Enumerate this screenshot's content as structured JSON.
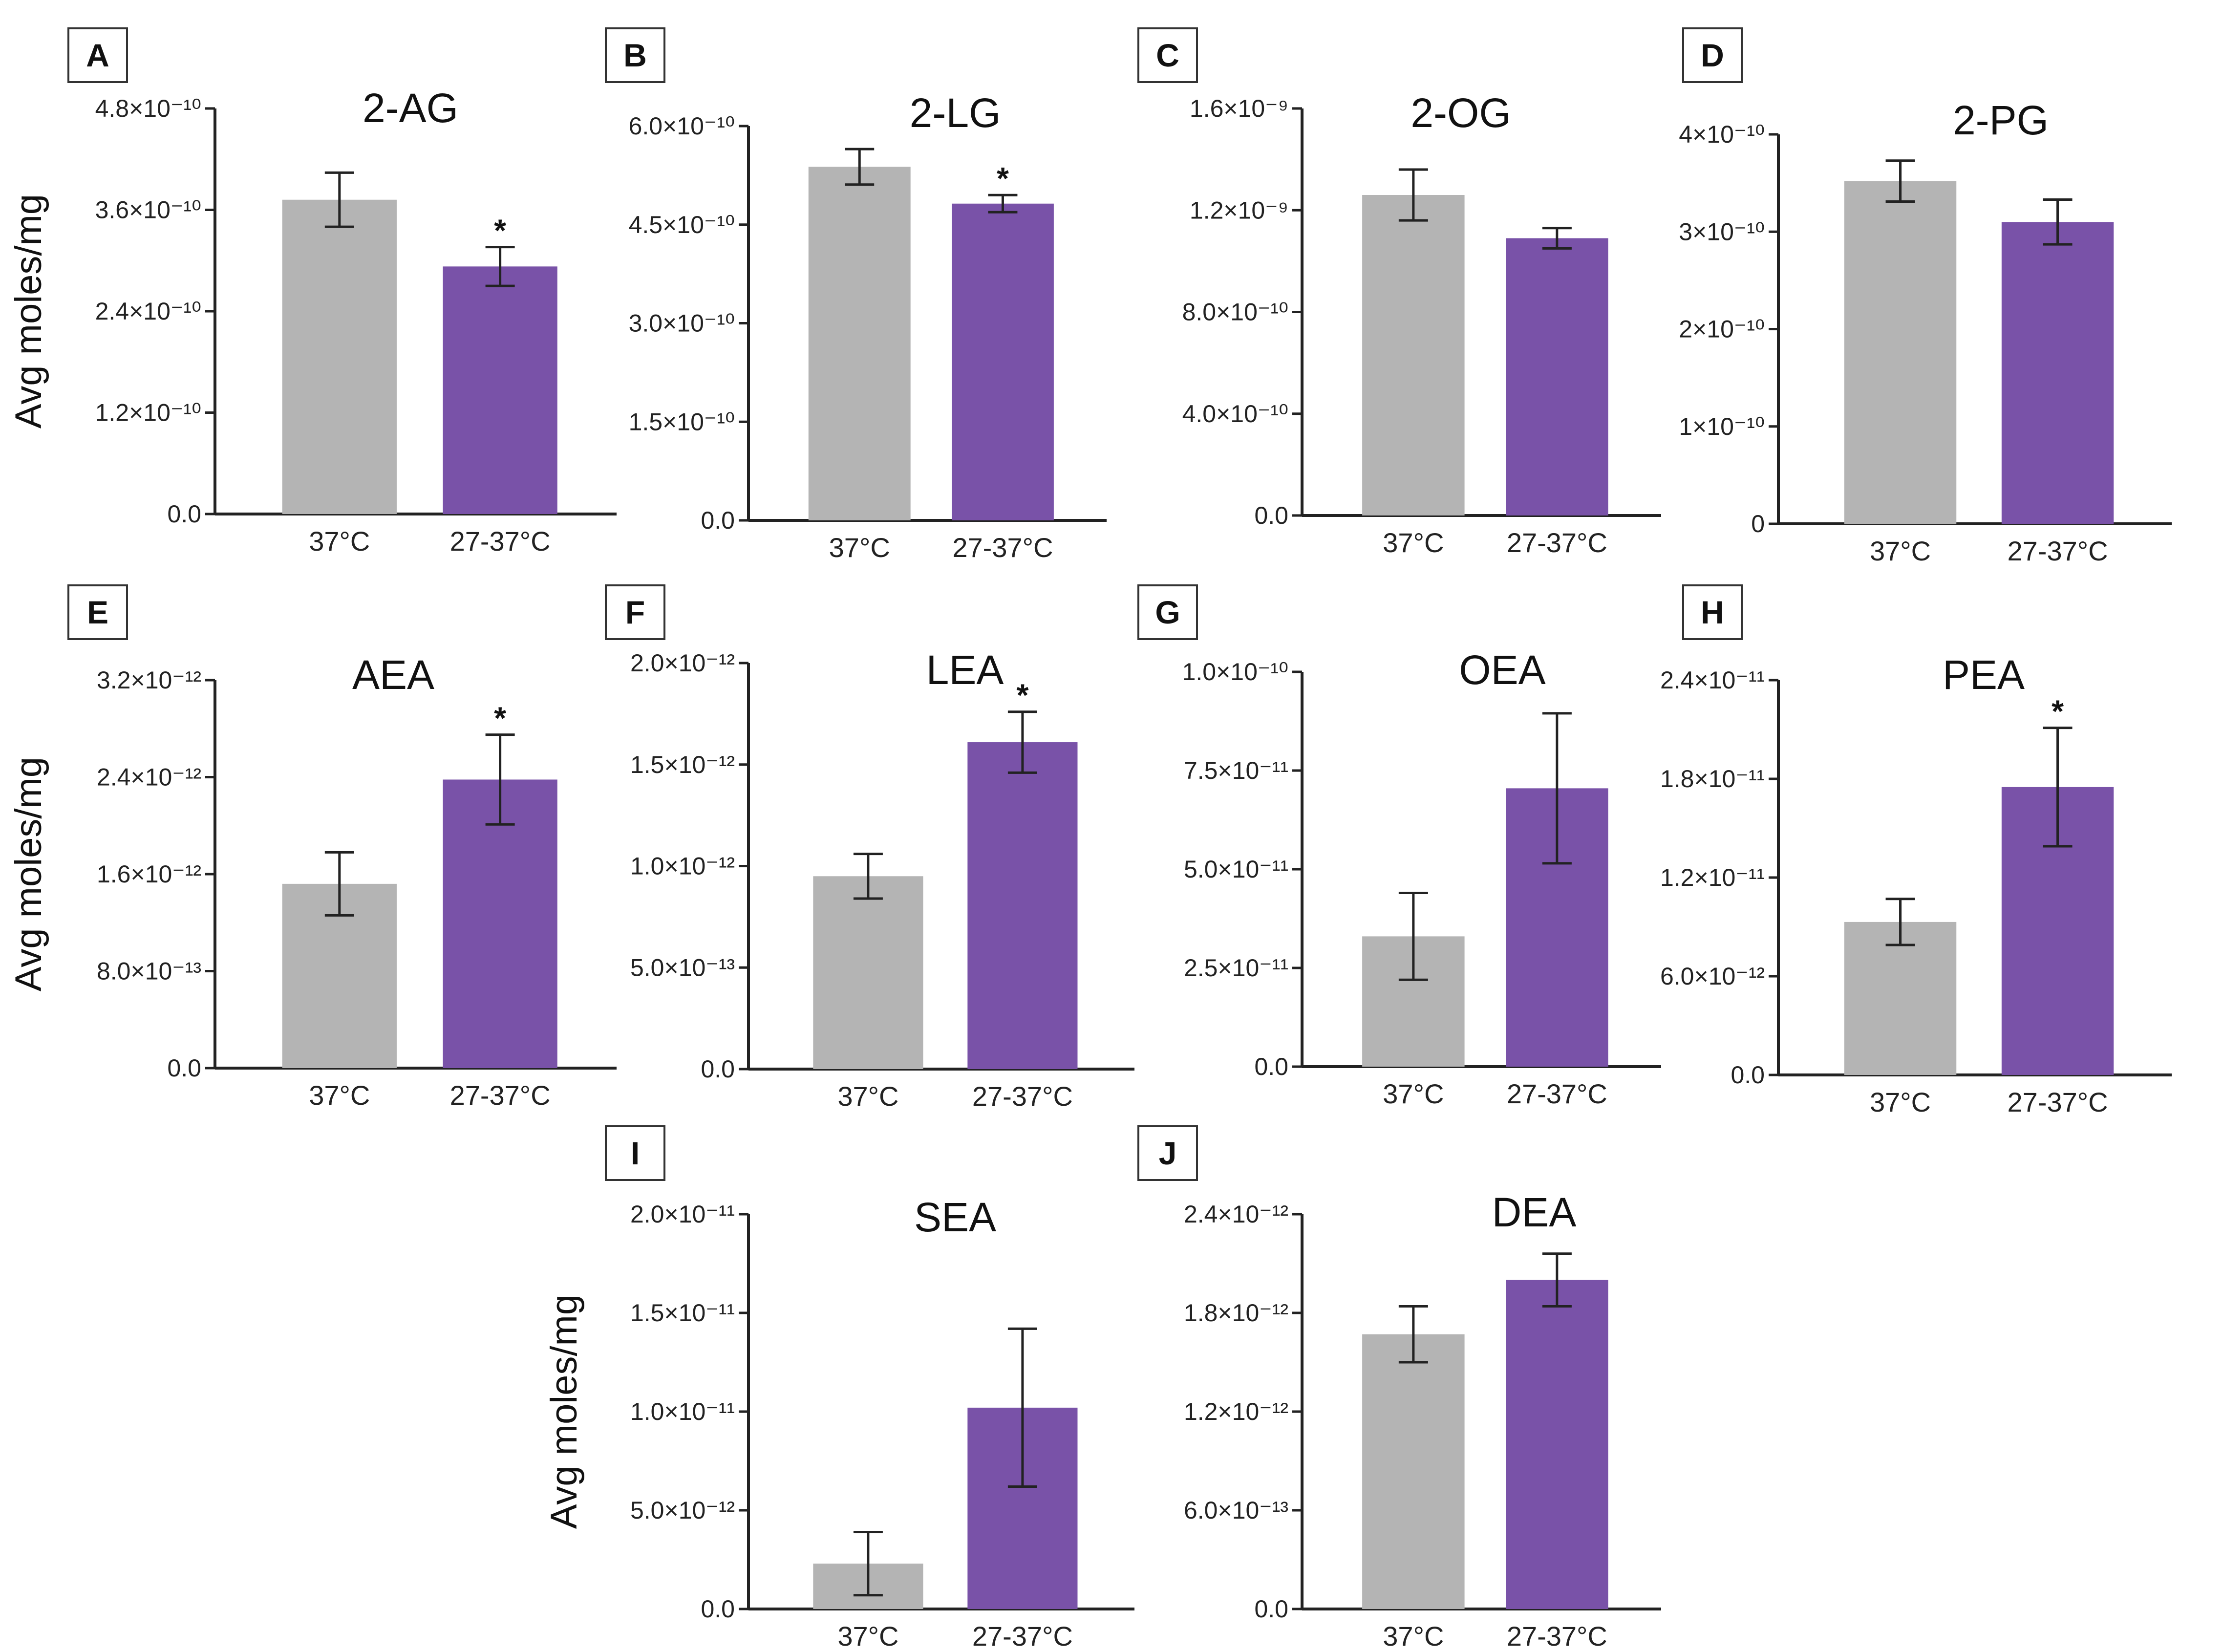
{
  "figure": {
    "colors": {
      "control": "#b4b4b4",
      "treatment": "#7952a8"
    },
    "ylabel": "Avg moles/mg"
  },
  "chart_data": [
    {
      "panel": "A",
      "type": "bar",
      "title": "2-AG",
      "categories": [
        "37°C",
        "27-37°C"
      ],
      "values": [
        3.72e-10,
        2.93e-10
      ],
      "errors": [
        3.2e-11,
        2.3e-11
      ],
      "significant": [
        false,
        true
      ],
      "ylim": [
        0,
        4.8e-10
      ],
      "ticks": [
        0,
        1.2e-10,
        2.4e-10,
        3.6e-10,
        4.8e-10
      ],
      "tick_labels": [
        "0.0",
        "1.2×10⁻¹⁰",
        "2.4×10⁻¹⁰",
        "3.6×10⁻¹⁰",
        "4.8×10⁻¹⁰"
      ],
      "ylabel": "Avg moles/mg"
    },
    {
      "panel": "B",
      "type": "bar",
      "title": "2-LG",
      "categories": [
        "37°C",
        "27-37°C"
      ],
      "values": [
        5.38e-10,
        4.82e-10
      ],
      "errors": [
        2.7e-11,
        1.3e-11
      ],
      "significant": [
        false,
        true
      ],
      "ylim": [
        0,
        6e-10
      ],
      "ticks": [
        0,
        1.5e-10,
        3e-10,
        4.5e-10,
        6e-10
      ],
      "tick_labels": [
        "0.0",
        "1.5×10⁻¹⁰",
        "3.0×10⁻¹⁰",
        "4.5×10⁻¹⁰",
        "6.0×10⁻¹⁰"
      ],
      "ylabel": ""
    },
    {
      "panel": "C",
      "type": "bar",
      "title": "2-OG",
      "categories": [
        "37°C",
        "27-37°C"
      ],
      "values": [
        1.26e-09,
        1.09e-09
      ],
      "errors": [
        1e-10,
        4e-11
      ],
      "significant": [
        false,
        false
      ],
      "ylim": [
        0,
        1.6e-09
      ],
      "ticks": [
        0,
        4e-10,
        8e-10,
        1.2e-09,
        1.6e-09
      ],
      "tick_labels": [
        "0.0",
        "4.0×10⁻¹⁰",
        "8.0×10⁻¹⁰",
        "1.2×10⁻⁹",
        "1.6×10⁻⁹"
      ],
      "ylabel": ""
    },
    {
      "panel": "D",
      "type": "bar",
      "title": "2-PG",
      "categories": [
        "37°C",
        "27-37°C"
      ],
      "values": [
        3.52e-10,
        3.1e-10
      ],
      "errors": [
        2.1e-11,
        2.3e-11
      ],
      "significant": [
        false,
        false
      ],
      "ylim": [
        0,
        4e-10
      ],
      "ticks": [
        0,
        1e-10,
        2e-10,
        3e-10,
        4e-10
      ],
      "tick_labels": [
        "0",
        "1×10⁻¹⁰",
        "2×10⁻¹⁰",
        "3×10⁻¹⁰",
        "4×10⁻¹⁰"
      ],
      "ylabel": ""
    },
    {
      "panel": "E",
      "type": "bar",
      "title": "AEA",
      "categories": [
        "37°C",
        "27-37°C"
      ],
      "values": [
        1.52e-12,
        2.38e-12
      ],
      "errors": [
        2.6e-13,
        3.7e-13
      ],
      "significant": [
        false,
        true
      ],
      "ylim": [
        0,
        3.2e-12
      ],
      "ticks": [
        0,
        8e-13,
        1.6e-12,
        2.4e-12,
        3.2e-12
      ],
      "tick_labels": [
        "0.0",
        "8.0×10⁻¹³",
        "1.6×10⁻¹²",
        "2.4×10⁻¹²",
        "3.2×10⁻¹²"
      ],
      "ylabel": "Avg moles/mg"
    },
    {
      "panel": "F",
      "type": "bar",
      "title": "LEA",
      "categories": [
        "37°C",
        "27-37°C"
      ],
      "values": [
        9.5e-13,
        1.61e-12
      ],
      "errors": [
        1.1e-13,
        1.5e-13
      ],
      "significant": [
        false,
        true
      ],
      "ylim": [
        0,
        2e-12
      ],
      "ticks": [
        0,
        5e-13,
        1e-12,
        1.5e-12,
        2e-12
      ],
      "tick_labels": [
        "0.0",
        "5.0×10⁻¹³",
        "1.0×10⁻¹²",
        "1.5×10⁻¹²",
        "2.0×10⁻¹²"
      ],
      "ylabel": ""
    },
    {
      "panel": "G",
      "type": "bar",
      "title": "OEA",
      "categories": [
        "37°C",
        "27-37°C"
      ],
      "values": [
        3.3e-11,
        7.05e-11
      ],
      "errors": [
        1.1e-11,
        1.9e-11
      ],
      "significant": [
        false,
        false
      ],
      "ylim": [
        0,
        1e-10
      ],
      "ticks": [
        0,
        2.5e-11,
        5e-11,
        7.5e-11,
        1e-10
      ],
      "tick_labels": [
        "0.0",
        "2.5×10⁻¹¹",
        "5.0×10⁻¹¹",
        "7.5×10⁻¹¹",
        "1.0×10⁻¹⁰"
      ],
      "ylabel": ""
    },
    {
      "panel": "H",
      "type": "bar",
      "title": "PEA",
      "categories": [
        "37°C",
        "27-37°C"
      ],
      "values": [
        9.3e-12,
        1.75e-11
      ],
      "errors": [
        1.4e-12,
        3.6e-12
      ],
      "significant": [
        false,
        true
      ],
      "ylim": [
        0,
        2.4e-11
      ],
      "ticks": [
        0,
        6e-12,
        1.2e-11,
        1.8e-11,
        2.4e-11
      ],
      "tick_labels": [
        "0.0",
        "6.0×10⁻¹²",
        "1.2×10⁻¹¹",
        "1.8×10⁻¹¹",
        "2.4×10⁻¹¹"
      ],
      "ylabel": ""
    },
    {
      "panel": "I",
      "type": "bar",
      "title": "SEA",
      "categories": [
        "37°C",
        "27-37°C"
      ],
      "values": [
        2.3e-12,
        1.02e-11
      ],
      "errors": [
        1.6e-12,
        4e-12
      ],
      "significant": [
        false,
        false
      ],
      "ylim": [
        0,
        2e-11
      ],
      "ticks": [
        0,
        5e-12,
        1e-11,
        1.5e-11,
        2e-11
      ],
      "tick_labels": [
        "0.0",
        "5.0×10⁻¹²",
        "1.0×10⁻¹¹",
        "1.5×10⁻¹¹",
        "2.0×10⁻¹¹"
      ],
      "ylabel": "Avg moles/mg"
    },
    {
      "panel": "J",
      "type": "bar",
      "title": "DEA",
      "categories": [
        "37°C",
        "27-37°C"
      ],
      "values": [
        1.67e-12,
        2e-12
      ],
      "errors": [
        1.7e-13,
        1.6e-13
      ],
      "significant": [
        false,
        false
      ],
      "ylim": [
        0,
        2.4e-12
      ],
      "ticks": [
        0,
        6e-13,
        1.2e-12,
        1.8e-12,
        2.4e-12
      ],
      "tick_labels": [
        "0.0",
        "6.0×10⁻¹³",
        "1.2×10⁻¹²",
        "1.8×10⁻¹²",
        "2.4×10⁻¹²"
      ],
      "ylabel": ""
    }
  ]
}
